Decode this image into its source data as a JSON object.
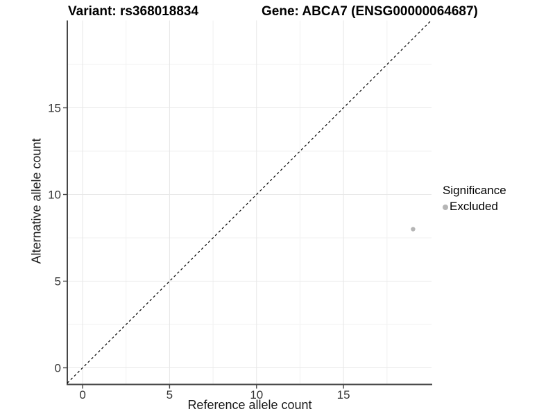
{
  "header": {
    "variant_title": "Variant: rs368018834",
    "gene_title": "Gene: ABCA7 (ENSG00000064687)"
  },
  "axes": {
    "x_label": "Reference allele count",
    "y_label": "Alternative allele count"
  },
  "legend": {
    "title": "Significance",
    "items": [
      {
        "label": "Excluded",
        "color": "#b5b5b5"
      }
    ]
  },
  "chart_data": {
    "type": "scatter",
    "title": "Variant: rs368018834   Gene: ABCA7 (ENSG00000064687)",
    "xlabel": "Reference allele count",
    "ylabel": "Alternative allele count",
    "xlim": [
      -0.88,
      20.06
    ],
    "ylim": [
      -0.96,
      20.04
    ],
    "x_breaks": [
      0,
      5,
      10,
      15
    ],
    "y_breaks": [
      0,
      5,
      10,
      15
    ],
    "x_minor_breaks": [
      2.5,
      7.5,
      12.5,
      17.5
    ],
    "y_minor_breaks": [
      2.5,
      7.5,
      12.5,
      17.5
    ],
    "grid": true,
    "legend_position": "right",
    "series": [
      {
        "name": "Excluded",
        "color": "#b5b5b5",
        "points": [
          {
            "x": 19,
            "y": 8
          }
        ]
      }
    ],
    "point_radius": 3.2,
    "reference_line": {
      "slope": 1,
      "intercept": 0,
      "style": "dashed",
      "color": "#000000"
    },
    "style": {
      "grid_major_color": "#e8e8e8",
      "grid_minor_color": "#f1f1f1",
      "axis_line_color": "#464646",
      "tick_label_color": "#333333",
      "tick_label_size": 17
    }
  }
}
